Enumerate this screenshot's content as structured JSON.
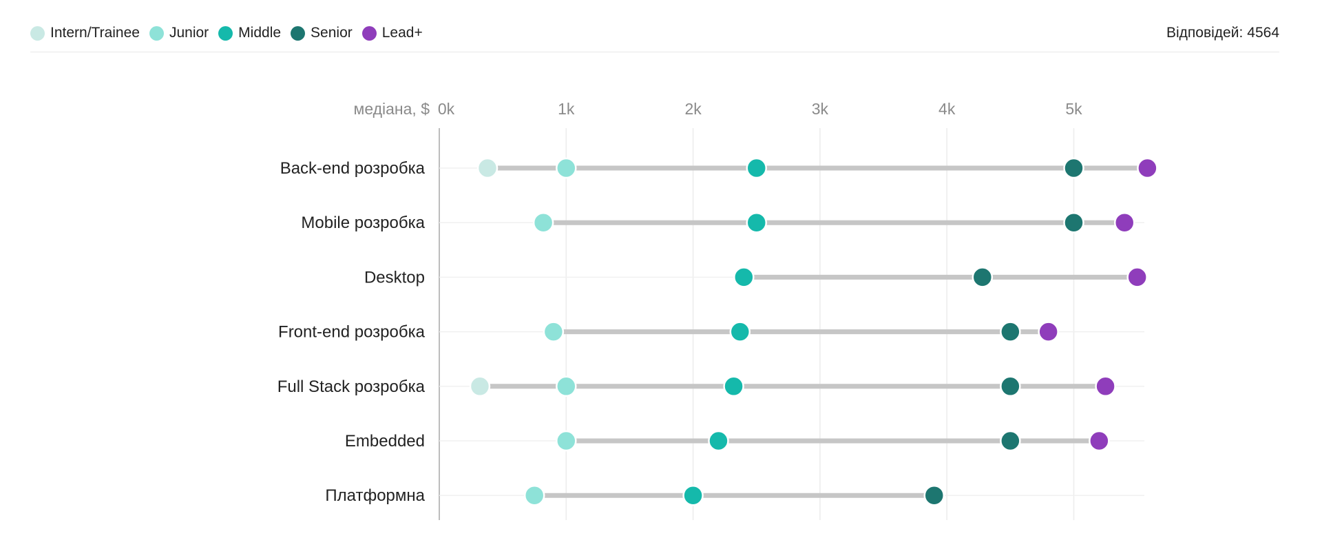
{
  "legend": [
    {
      "label": "Intern/Trainee",
      "color": "#c9e9e4"
    },
    {
      "label": "Junior",
      "color": "#8ee2d8"
    },
    {
      "label": "Middle",
      "color": "#15b9ab"
    },
    {
      "label": "Senior",
      "color": "#1d7670"
    },
    {
      "label": "Lead+",
      "color": "#8f3dbb"
    }
  ],
  "responses": {
    "label": "Відповідей:",
    "value": "4564"
  },
  "chart_data": {
    "type": "scatter",
    "subtype": "dot-range",
    "xlabel": "медіана, $",
    "xlim": [
      0,
      5.6
    ],
    "x_ticks": [
      {
        "value": 0,
        "label": "0k"
      },
      {
        "value": 1,
        "label": "1k"
      },
      {
        "value": 2,
        "label": "2k"
      },
      {
        "value": 3,
        "label": "3k"
      },
      {
        "value": 4,
        "label": "4k"
      },
      {
        "value": 5,
        "label": "5k"
      }
    ],
    "grid": true,
    "series_names": [
      "Intern/Trainee",
      "Junior",
      "Middle",
      "Senior",
      "Lead+"
    ],
    "series_colors": [
      "#c9e9e4",
      "#8ee2d8",
      "#15b9ab",
      "#1d7670",
      "#8f3dbb"
    ],
    "categories": [
      "Back-end розробка",
      "Mobile розробка",
      "Desktop",
      "Front-end розробка",
      "Full Stack розробка",
      "Embedded",
      "Платформна"
    ],
    "values": [
      [
        0.38,
        1.0,
        2.5,
        5.0,
        5.58
      ],
      [
        null,
        0.82,
        2.5,
        5.0,
        5.4
      ],
      [
        null,
        null,
        2.4,
        4.28,
        5.5
      ],
      [
        null,
        0.9,
        2.37,
        4.5,
        4.8
      ],
      [
        0.32,
        1.0,
        2.32,
        4.5,
        5.25
      ],
      [
        null,
        1.0,
        2.2,
        4.5,
        5.2
      ],
      [
        null,
        0.75,
        2.0,
        3.9,
        null
      ]
    ]
  }
}
